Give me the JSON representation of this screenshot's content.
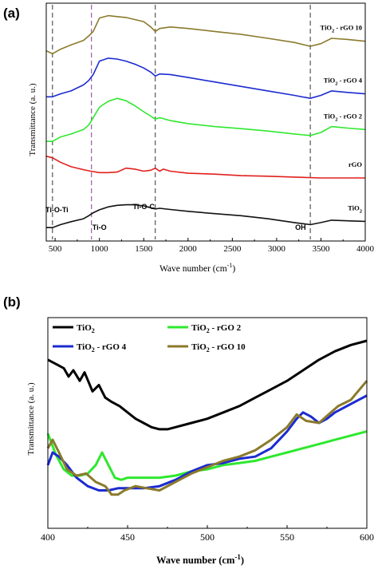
{
  "chart_data": [
    {
      "type": "line",
      "panel_label": "(a)",
      "xlabel": "Wave number (cm",
      "xlabel_sup": "-1",
      "xlabel_tail": ")",
      "ylabel": "Transmittance (a. u.)",
      "xlim": [
        400,
        4000
      ],
      "xticks": [
        500,
        1000,
        1500,
        2000,
        2500,
        3000,
        3500,
        4000
      ],
      "stacked_offsets": true,
      "grid": false,
      "dashed_markers": [
        {
          "x": 470,
          "color": "#555555"
        },
        {
          "x": 910,
          "color": "#9a5aa8"
        },
        {
          "x": 1630,
          "color": "#555555"
        },
        {
          "x": 3380,
          "color": "#555555"
        }
      ],
      "annotations": [
        {
          "text": "Ti-O-Ti",
          "x": 520
        },
        {
          "text": "Ti-O",
          "x": 1000
        },
        {
          "text": "Ti-O-C",
          "x": 1500
        },
        {
          "text": "OH",
          "x": 3270
        }
      ],
      "series": [
        {
          "name": "TiO2 - rGO 10",
          "name_main": "TiO",
          "name_sub": "2",
          "name_tail": " - rGO 10",
          "color": "#8b7a2c",
          "x": [
            400,
            470,
            560,
            680,
            820,
            880,
            930,
            1000,
            1100,
            1200,
            1300,
            1400,
            1500,
            1580,
            1630,
            1680,
            1800,
            2000,
            2300,
            2600,
            2900,
            3200,
            3380,
            3500,
            3620,
            3800,
            4000
          ],
          "y": [
            6.4,
            6.3,
            6.45,
            6.6,
            6.75,
            6.9,
            7.05,
            7.5,
            7.58,
            7.55,
            7.52,
            7.45,
            7.38,
            7.2,
            7.05,
            7.15,
            7.2,
            7.15,
            7.05,
            6.95,
            6.82,
            6.68,
            6.55,
            6.64,
            6.82,
            6.78,
            6.72
          ]
        },
        {
          "name": "TiO2 - rGO 4",
          "name_main": "TiO",
          "name_sub": "2",
          "name_tail": " - rGO 4",
          "color": "#1c2bd0",
          "x": [
            400,
            470,
            560,
            680,
            820,
            880,
            930,
            1000,
            1100,
            1200,
            1300,
            1400,
            1500,
            1580,
            1630,
            1680,
            1800,
            2000,
            2300,
            2600,
            2900,
            3200,
            3380,
            3500,
            3620,
            3800,
            4000
          ],
          "y": [
            4.85,
            4.85,
            4.95,
            5.05,
            5.25,
            5.4,
            5.6,
            6.05,
            6.15,
            6.12,
            6.05,
            5.95,
            5.82,
            5.68,
            5.55,
            5.62,
            5.6,
            5.5,
            5.35,
            5.2,
            5.05,
            4.9,
            4.8,
            4.9,
            5.05,
            5.0,
            4.95
          ]
        },
        {
          "name": "TiO2 - rGO 2",
          "name_main": "TiO",
          "name_sub": "2",
          "name_tail": " - rGO 2",
          "color": "#2ee82e",
          "x": [
            400,
            470,
            560,
            680,
            820,
            880,
            930,
            1000,
            1100,
            1200,
            1300,
            1400,
            1500,
            1580,
            1630,
            1680,
            1800,
            2000,
            2300,
            2600,
            2900,
            3200,
            3380,
            3500,
            3620,
            3800,
            4000
          ],
          "y": [
            3.35,
            3.35,
            3.5,
            3.6,
            3.75,
            3.9,
            4.15,
            4.5,
            4.7,
            4.8,
            4.72,
            4.55,
            4.35,
            4.2,
            4.1,
            4.15,
            4.05,
            3.95,
            3.85,
            3.78,
            3.7,
            3.6,
            3.55,
            3.65,
            3.85,
            3.8,
            3.75
          ]
        },
        {
          "name": "rGO",
          "name_main": "rGO",
          "name_sub": "",
          "name_tail": "",
          "color": "#e0201c",
          "x": [
            400,
            470,
            560,
            680,
            820,
            900,
            1000,
            1100,
            1200,
            1300,
            1400,
            1500,
            1580,
            1630,
            1680,
            1720,
            1800,
            2000,
            2300,
            2600,
            2900,
            3200,
            3500,
            3800,
            4000
          ],
          "y": [
            2.85,
            2.8,
            2.65,
            2.5,
            2.4,
            2.35,
            2.3,
            2.3,
            2.32,
            2.45,
            2.42,
            2.35,
            2.38,
            2.45,
            2.35,
            2.42,
            2.35,
            2.28,
            2.25,
            2.2,
            2.18,
            2.15,
            2.12,
            2.12,
            2.12
          ]
        },
        {
          "name": "TiO2",
          "name_main": "TiO",
          "name_sub": "2",
          "name_tail": "",
          "color": "#111111",
          "x": [
            400,
            470,
            560,
            680,
            820,
            880,
            930,
            1000,
            1100,
            1200,
            1300,
            1400,
            1500,
            1580,
            1630,
            1680,
            1800,
            2000,
            2300,
            2600,
            2900,
            3200,
            3380,
            3500,
            3620,
            3800,
            4000
          ],
          "y": [
            0.45,
            0.45,
            0.55,
            0.65,
            0.75,
            0.85,
            0.95,
            1.05,
            1.15,
            1.2,
            1.22,
            1.22,
            1.18,
            1.12,
            1.08,
            1.1,
            1.06,
            1.0,
            0.92,
            0.85,
            0.75,
            0.62,
            0.55,
            0.62,
            0.7,
            0.68,
            0.66
          ]
        }
      ]
    },
    {
      "type": "line",
      "panel_label": "(b)",
      "xlabel": "Wave number (cm",
      "xlabel_sup": "-1",
      "xlabel_tail": ")",
      "ylabel": "Transmittance (a. u.)",
      "xlim": [
        400,
        600
      ],
      "xticks": [
        400,
        450,
        500,
        550,
        600
      ],
      "grid": false,
      "legend": "top-left",
      "series": [
        {
          "name": "TiO2",
          "name_main": "TiO",
          "name_sub": "2",
          "name_tail": "",
          "color": "#000000",
          "x": [
            400,
            405,
            410,
            413,
            416,
            420,
            423,
            428,
            432,
            436,
            440,
            445,
            450,
            455,
            460,
            465,
            470,
            475,
            480,
            490,
            500,
            510,
            520,
            530,
            540,
            550,
            560,
            570,
            580,
            590,
            600
          ],
          "y": [
            0.8,
            0.78,
            0.76,
            0.72,
            0.75,
            0.7,
            0.74,
            0.65,
            0.68,
            0.62,
            0.6,
            0.58,
            0.55,
            0.52,
            0.5,
            0.48,
            0.47,
            0.47,
            0.48,
            0.5,
            0.52,
            0.55,
            0.58,
            0.62,
            0.66,
            0.7,
            0.75,
            0.8,
            0.84,
            0.87,
            0.89
          ]
        },
        {
          "name": "TiO2 - rGO 2",
          "name_main": "TiO",
          "name_sub": "2",
          "name_tail": " - rGO 2",
          "color": "#2ee82e",
          "x": [
            400,
            405,
            410,
            415,
            420,
            425,
            430,
            434,
            438,
            442,
            446,
            450,
            460,
            470,
            480,
            490,
            500,
            510,
            520,
            530,
            540,
            550,
            560,
            570,
            580,
            590,
            600
          ],
          "y": [
            0.45,
            0.35,
            0.28,
            0.25,
            0.25,
            0.26,
            0.3,
            0.36,
            0.3,
            0.24,
            0.23,
            0.24,
            0.24,
            0.24,
            0.25,
            0.27,
            0.28,
            0.3,
            0.31,
            0.32,
            0.34,
            0.36,
            0.38,
            0.4,
            0.42,
            0.44,
            0.46
          ]
        },
        {
          "name": "TiO2 - rGO 4",
          "name_main": "TiO",
          "name_sub": "2",
          "name_tail": " - rGO 4",
          "color": "#1c2bd0",
          "x": [
            400,
            403,
            407,
            412,
            418,
            425,
            432,
            438,
            444,
            450,
            460,
            470,
            480,
            490,
            500,
            510,
            520,
            530,
            540,
            550,
            556,
            560,
            565,
            570,
            575,
            580,
            590,
            600
          ],
          "y": [
            0.3,
            0.36,
            0.34,
            0.3,
            0.24,
            0.2,
            0.18,
            0.18,
            0.19,
            0.19,
            0.19,
            0.2,
            0.23,
            0.27,
            0.3,
            0.31,
            0.33,
            0.34,
            0.38,
            0.46,
            0.52,
            0.55,
            0.53,
            0.5,
            0.52,
            0.55,
            0.59,
            0.63
          ]
        },
        {
          "name": "TiO2 - rGO 10",
          "name_main": "TiO",
          "name_sub": "2",
          "name_tail": " - rGO 10",
          "color": "#8b7a2c",
          "x": [
            400,
            403,
            407,
            412,
            418,
            424,
            430,
            436,
            440,
            444,
            448,
            455,
            462,
            470,
            480,
            490,
            500,
            510,
            520,
            530,
            540,
            545,
            550,
            556,
            562,
            570,
            576,
            582,
            590,
            600
          ],
          "y": [
            0.38,
            0.42,
            0.36,
            0.28,
            0.25,
            0.26,
            0.22,
            0.2,
            0.16,
            0.16,
            0.18,
            0.2,
            0.19,
            0.18,
            0.22,
            0.26,
            0.29,
            0.32,
            0.34,
            0.37,
            0.42,
            0.45,
            0.48,
            0.54,
            0.51,
            0.5,
            0.54,
            0.58,
            0.61,
            0.7
          ]
        }
      ]
    }
  ]
}
